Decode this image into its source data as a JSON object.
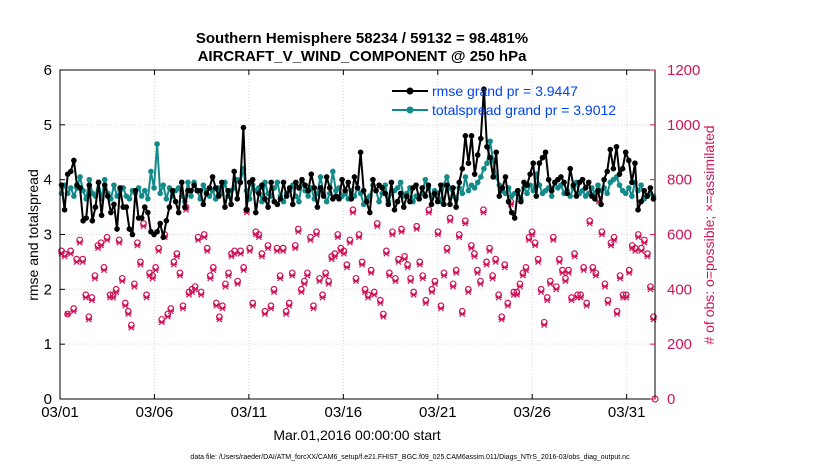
{
  "chart_data": {
    "type": "line",
    "title": "Southern Hemisphere 58234 / 59132 = 98.481%",
    "subtitle": "AIRCRAFT_V_WIND_COMPONENT @ 250 hPa",
    "xlabel": "Mar.01,2016 00:00:00 start",
    "ylabel_left": "rmse and totalspread",
    "ylabel_right": "# of obs: o=possible; ×=assimilated",
    "footer": "data file: /Users/raeder/DAI/ATM_forcXX/CAM6_setup/f.e21.FHIST_BGC.f09_025.CAM6assim.011/Diags_NTrS_2016-03/obs_diag_output.nc",
    "xlim": [
      0,
      31.5
    ],
    "ylim_left": [
      0,
      6
    ],
    "ylim_right": [
      0,
      1200
    ],
    "x_ticks": [
      0,
      5,
      10,
      15,
      20,
      25,
      30
    ],
    "x_tick_labels": [
      "03/01",
      "03/06",
      "03/11",
      "03/16",
      "03/21",
      "03/26",
      "03/31"
    ],
    "y_left_ticks": [
      "0",
      "1",
      "2",
      "3",
      "4",
      "5",
      "6"
    ],
    "y_right_ticks": [
      "0",
      "200",
      "400",
      "600",
      "800",
      "1000",
      "1200"
    ],
    "colors": {
      "rmse": "#000000",
      "spread": "#138a8a",
      "obs": "#d0145a",
      "legend_text": "#0044ee"
    },
    "series": [
      {
        "name": "rmse grand pr = 3.9447",
        "axis": "left",
        "values": [
          3.9,
          3.45,
          4.1,
          4.15,
          4.35,
          3.9,
          3.85,
          3.25,
          3.3,
          3.9,
          3.25,
          3.5,
          3.95,
          3.35,
          3.9,
          3.7,
          3.4,
          3.55,
          3.1,
          3.85,
          3.5,
          3.5,
          3.1,
          3.0,
          3.8,
          3.3,
          3.3,
          3.5,
          3.4,
          3.05,
          3.0,
          3.05,
          3.2,
          2.95,
          3.25,
          3.5,
          3.8,
          3.6,
          3.4,
          3.95,
          3.5,
          3.8,
          3.8,
          3.9,
          3.8,
          3.8,
          3.55,
          3.75,
          3.85,
          4.05,
          3.85,
          3.7,
          3.95,
          3.5,
          3.8,
          3.55,
          4.15,
          3.65,
          3.95,
          4.95,
          3.45,
          3.95,
          4.0,
          3.4,
          3.75,
          3.9,
          3.65,
          3.5,
          3.95,
          3.6,
          3.55,
          3.65,
          3.95,
          3.7,
          3.85,
          3.55,
          3.95,
          3.85,
          4.0,
          3.9,
          3.8,
          4.1,
          3.85,
          3.5,
          3.85,
          3.7,
          4.05,
          3.85,
          3.65,
          3.7,
          3.65,
          4.0,
          3.8,
          3.95,
          3.65,
          4.05,
          3.85,
          4.5,
          3.8,
          3.6,
          3.4,
          4.0,
          3.8,
          3.9,
          3.85,
          3.75,
          3.55,
          3.95,
          3.45,
          3.6,
          3.75,
          3.5,
          3.7,
          3.6,
          3.85,
          3.9,
          3.65,
          3.85,
          3.7,
          3.9,
          3.55,
          3.75,
          3.6,
          3.9,
          3.55,
          3.9,
          3.55,
          3.85,
          3.5,
          3.95,
          4.2,
          4.8,
          4.3,
          4.8,
          4.1,
          4.45,
          4.75,
          5.65,
          4.6,
          4.4,
          4.05,
          4.5,
          3.7,
          3.85,
          4.05,
          3.6,
          3.4,
          3.3,
          3.8,
          3.6,
          3.95,
          3.9,
          4.1,
          4.3,
          3.7,
          4.3,
          4.4,
          4.5,
          4.0,
          3.8,
          3.95,
          4.0,
          4.05,
          3.95,
          3.75,
          4.2,
          3.9,
          3.7,
          3.95,
          4.0,
          3.85,
          3.95,
          3.7,
          3.65,
          3.8,
          3.55,
          4.0,
          4.15,
          4.55,
          4.2,
          4.6,
          4.1,
          4.2,
          4.5,
          4.35,
          3.95,
          4.3,
          3.45,
          3.6,
          3.8,
          3.7,
          3.85,
          3.65
        ]
      },
      {
        "name": "totalspread grand pr = 3.9012",
        "axis": "left",
        "values": [
          3.75,
          3.9,
          3.75,
          3.85,
          3.7,
          3.85,
          4.05,
          3.8,
          3.65,
          4.0,
          3.75,
          3.7,
          3.95,
          3.65,
          4.0,
          3.75,
          3.65,
          3.9,
          3.7,
          3.8,
          3.85,
          3.7,
          3.65,
          3.8,
          3.75,
          3.85,
          3.7,
          3.8,
          3.65,
          4.15,
          3.85,
          4.65,
          3.75,
          3.9,
          3.65,
          3.85,
          3.7,
          3.8,
          3.85,
          3.7,
          3.6,
          3.95,
          3.7,
          3.95,
          3.8,
          3.65,
          3.9,
          3.8,
          3.7,
          3.8,
          3.65,
          3.85,
          3.75,
          3.95,
          3.7,
          3.8,
          3.85,
          4.0,
          3.95,
          4.2,
          3.8,
          3.65,
          3.9,
          3.8,
          3.85,
          3.6,
          3.95,
          3.75,
          3.7,
          3.85,
          3.95,
          3.7,
          3.6,
          3.75,
          3.8,
          3.9,
          3.7,
          3.6,
          3.95,
          3.8,
          3.7,
          3.85,
          3.65,
          3.75,
          4.05,
          3.75,
          3.6,
          3.75,
          4.15,
          3.8,
          3.85,
          3.7,
          3.75,
          3.65,
          3.8,
          3.7,
          3.85,
          3.75,
          3.55,
          3.65,
          3.7,
          3.9,
          3.8,
          3.6,
          3.75,
          3.9,
          3.6,
          3.75,
          3.8,
          3.85,
          3.95,
          3.7,
          3.75,
          3.85,
          3.6,
          3.7,
          3.65,
          3.75,
          4.0,
          3.85,
          3.7,
          3.8,
          3.75,
          3.6,
          3.9,
          4.05,
          3.85,
          3.7,
          3.65,
          3.85,
          3.75,
          4.05,
          3.8,
          3.9,
          3.85,
          3.95,
          4.05,
          4.2,
          4.3,
          4.7,
          4.35,
          4.05,
          3.9,
          3.8,
          3.75,
          3.85,
          3.7,
          3.75,
          3.8,
          3.65,
          3.85,
          3.75,
          3.9,
          3.8,
          4.1,
          3.9,
          3.75,
          3.8,
          3.85,
          3.7,
          3.95,
          3.85,
          3.9,
          3.75,
          3.8,
          3.7,
          3.85,
          3.95,
          3.75,
          3.8,
          3.7,
          3.75,
          3.85,
          3.75,
          3.9,
          3.8,
          3.85,
          3.75,
          3.95,
          4.0,
          4.05,
          3.9,
          3.8,
          3.75,
          3.85,
          3.7,
          3.95,
          3.8,
          3.9,
          3.65,
          3.7,
          3.75,
          3.7
        ]
      },
      {
        "name": "obs possible",
        "axis": "right",
        "values": [
          540,
          530,
          310,
          540,
          330,
          510,
          580,
          510,
          380,
          300,
          370,
          450,
          560,
          570,
          480,
          590,
          380,
          380,
          400,
          580,
          440,
          350,
          320,
          270,
          420,
          570,
          500,
          640,
          380,
          460,
          450,
          480,
          550,
          290,
          600,
          310,
          330,
          500,
          530,
          460,
          340,
          700,
          390,
          400,
          410,
          590,
          390,
          600,
          550,
          450,
          480,
          350,
          300,
          340,
          420,
          460,
          530,
          540,
          430,
          540,
          480,
          690,
          550,
          350,
          610,
          600,
          530,
          320,
          560,
          340,
          400,
          550,
          450,
          550,
          320,
          350,
          460,
          560,
          620,
          400,
          430,
          460,
          590,
          340,
          610,
          440,
          380,
          460,
          430,
          520,
          530,
          600,
          550,
          540,
          490,
          580,
          690,
          440,
          600,
          500,
          400,
          380,
          470,
          390,
          640,
          360,
          310,
          540,
          460,
          610,
          440,
          510,
          620,
          520,
          490,
          440,
          390,
          630,
          500,
          450,
          360,
          690,
          400,
          430,
          610,
          340,
          460,
          550,
          660,
          420,
          470,
          600,
          320,
          650,
          400,
          560,
          530,
          470,
          430,
          690,
          500,
          550,
          450,
          510,
          380,
          300,
          490,
          350,
          720,
          390,
          390,
          420,
          460,
          480,
          590,
          610,
          570,
          510,
          400,
          280,
          370,
          430,
          590,
          410,
          510,
          470,
          440,
          470,
          370,
          530,
          380,
          380,
          480,
          350,
          650,
          480,
          460,
          730,
          610,
          420,
          360,
          570,
          590,
          320,
          450,
          380,
          380,
          470,
          560,
          550,
          600,
          550,
          580,
          530,
          410,
          300
        ]
      },
      {
        "name": "obs assimilated",
        "axis": "right",
        "values": [
          530,
          520,
          310,
          530,
          320,
          500,
          570,
          500,
          370,
          290,
          360,
          440,
          550,
          560,
          470,
          580,
          370,
          370,
          390,
          570,
          430,
          340,
          310,
          260,
          410,
          560,
          490,
          630,
          370,
          450,
          440,
          470,
          540,
          280,
          590,
          300,
          320,
          490,
          520,
          450,
          330,
          690,
          380,
          390,
          400,
          580,
          380,
          590,
          540,
          440,
          470,
          340,
          290,
          330,
          410,
          450,
          520,
          530,
          420,
          530,
          470,
          680,
          540,
          340,
          600,
          590,
          520,
          310,
          550,
          330,
          390,
          540,
          440,
          540,
          310,
          340,
          450,
          550,
          610,
          390,
          420,
          450,
          580,
          330,
          600,
          430,
          370,
          450,
          420,
          510,
          520,
          590,
          540,
          530,
          480,
          570,
          680,
          430,
          590,
          490,
          390,
          370,
          460,
          380,
          630,
          350,
          300,
          530,
          450,
          600,
          430,
          500,
          610,
          510,
          480,
          430,
          380,
          620,
          490,
          440,
          350,
          680,
          390,
          420,
          600,
          330,
          450,
          540,
          650,
          410,
          460,
          590,
          310,
          640,
          390,
          550,
          520,
          460,
          420,
          680,
          490,
          540,
          440,
          500,
          370,
          290,
          480,
          340,
          710,
          380,
          380,
          410,
          450,
          470,
          580,
          600,
          560,
          500,
          390,
          270,
          360,
          420,
          580,
          400,
          500,
          460,
          430,
          460,
          360,
          520,
          370,
          370,
          470,
          340,
          640,
          470,
          450,
          720,
          600,
          410,
          350,
          560,
          580,
          310,
          440,
          370,
          370,
          460,
          550,
          540,
          590,
          540,
          570,
          520,
          400,
          290
        ]
      }
    ]
  }
}
